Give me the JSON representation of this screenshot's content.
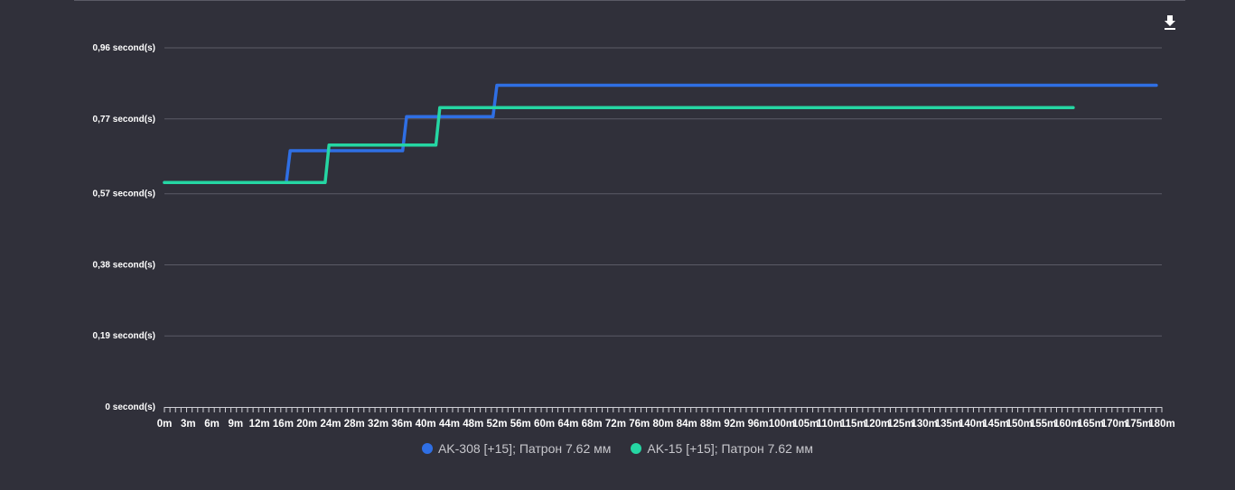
{
  "toolbar": {
    "download_icon": "download-icon"
  },
  "chart_data": {
    "type": "line",
    "title": "",
    "xlabel": "",
    "ylabel": "",
    "ylim": [
      0,
      0.96
    ],
    "y_ticks": [
      "0 second(s)",
      "0,19 second(s)",
      "0,38 second(s)",
      "0,57 second(s)",
      "0,77 second(s)",
      "0,96 second(s)"
    ],
    "y_tick_values": [
      0,
      0.19,
      0.38,
      0.57,
      0.77,
      0.96
    ],
    "x_labels": [
      "0m",
      "3m",
      "6m",
      "9m",
      "12m",
      "16m",
      "20m",
      "24m",
      "28m",
      "32m",
      "36m",
      "40m",
      "44m",
      "48m",
      "52m",
      "56m",
      "60m",
      "64m",
      "68m",
      "72m",
      "76m",
      "80m",
      "84m",
      "88m",
      "92m",
      "96m",
      "100m",
      "105m",
      "110m",
      "115m",
      "120m",
      "125m",
      "130m",
      "135m",
      "140m",
      "145m",
      "150m",
      "155m",
      "160m",
      "165m",
      "170m",
      "175m",
      "180m"
    ],
    "xlim": [
      0,
      180
    ],
    "grid": true,
    "legend_position": "bottom",
    "series": [
      {
        "name": "AK-308 [+15]; Патрон 7.62 мм",
        "color": "#2f6fe4",
        "points": [
          [
            0,
            0.6
          ],
          [
            22,
            0.6
          ],
          [
            22.7,
            0.685
          ],
          [
            43,
            0.685
          ],
          [
            43.7,
            0.776
          ],
          [
            59.3,
            0.776
          ],
          [
            60,
            0.86
          ],
          [
            179,
            0.86
          ]
        ]
      },
      {
        "name": "AK-15 [+15]; Патрон 7.62 мм",
        "color": "#25d6a3",
        "points": [
          [
            0,
            0.6
          ],
          [
            29,
            0.6
          ],
          [
            29.7,
            0.7
          ],
          [
            49,
            0.7
          ],
          [
            49.7,
            0.8
          ],
          [
            164,
            0.8
          ]
        ]
      }
    ]
  }
}
